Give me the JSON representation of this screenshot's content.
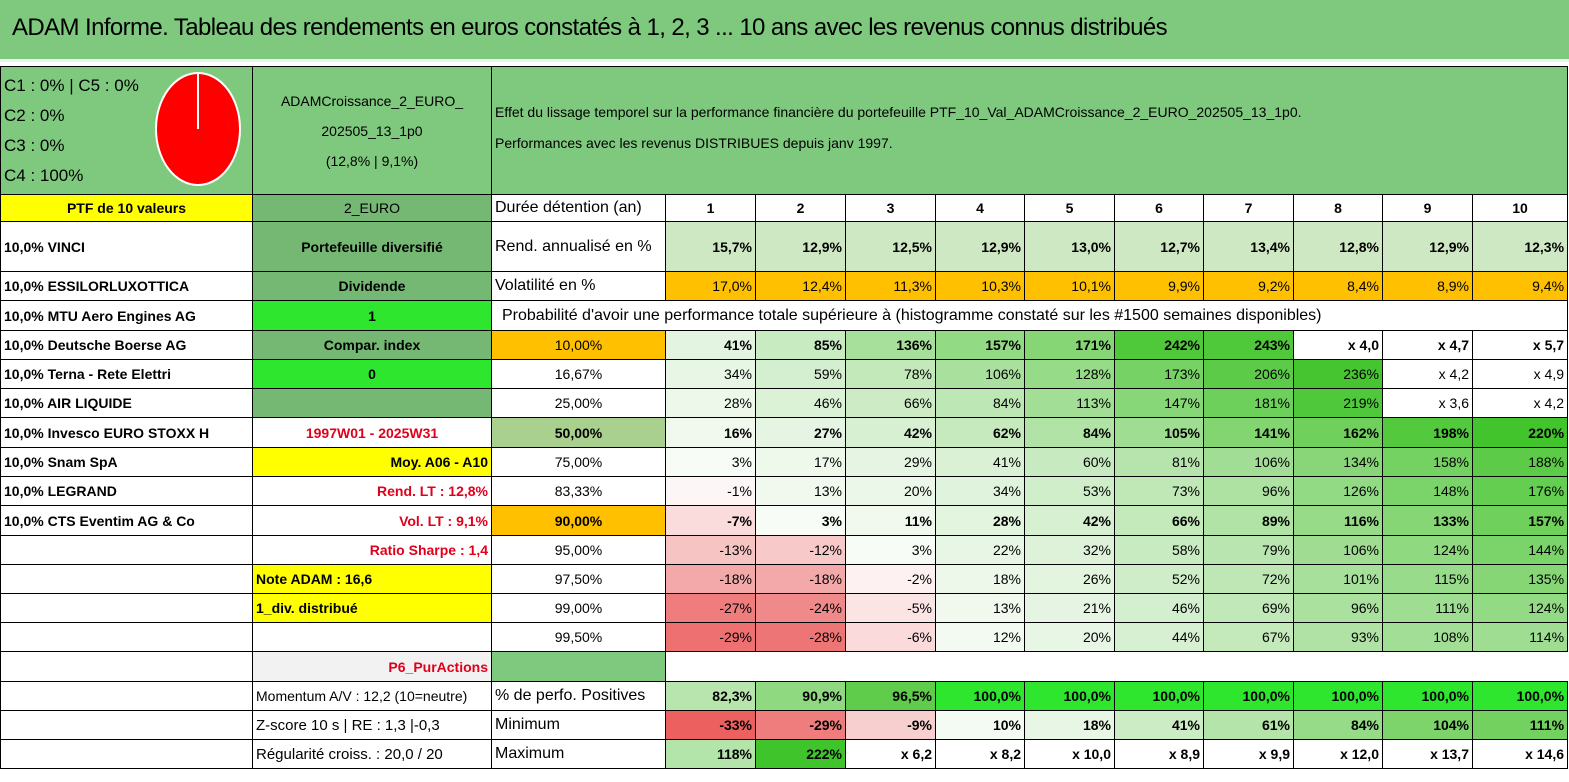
{
  "title": "ADAM Informe. Tableau des rendements en euros constatés à 1, 2, 3 ... 10 ans avec les revenus connus distribués",
  "categories": {
    "c1": "C1 : 0% | C5 : 0%",
    "c2": "C2 : 0%",
    "c3": "C3 : 0%",
    "c4": "C4 : 100%"
  },
  "portfolio": {
    "name_line1": "ADAMCroissance_2_EURO_",
    "name_line2": "202505_13_1p0",
    "name_line3": "(12,8% | 9,1%)"
  },
  "description": {
    "line1": "Effet du lissage temporel sur la performance financière du portefeuille PTF_10_Val_ADAMCroissance_2_EURO_202505_13_1p0.",
    "line2": "Performances avec les revenus DISTRIBUES depuis janv 1997."
  },
  "ptf_label": "PTF de 10 valeurs",
  "currency_label": "2_EURO",
  "duration_label": "Durée détention (an)",
  "years": [
    "1",
    "2",
    "3",
    "4",
    "5",
    "6",
    "7",
    "8",
    "9",
    "10"
  ],
  "holdings": [
    "10,0% VINCI",
    "10,0% ESSILORLUXOTTICA",
    "10,0% MTU Aero Engines AG",
    "10,0% Deutsche Boerse AG",
    "10,0% Terna - Rete Elettri",
    "10,0% AIR LIQUIDE",
    "10,0% Invesco EURO STOXX H",
    "10,0% Snam SpA",
    "10,0% LEGRAND",
    "10,0% CTS Eventim AG & Co"
  ],
  "middle": {
    "diversified": "Portefeuille diversifié",
    "dividend": "Dividende",
    "div_value": "1",
    "compar_index": "Compar. index",
    "compar_value": "0",
    "empty": "",
    "period": "1997W01 - 2025W31",
    "avg": "Moy. A06 - A10",
    "rend_lt": "Rend. LT : 12,8%",
    "vol_lt": "Vol. LT : 9,1%",
    "sharpe": "Ratio Sharpe : 1,4",
    "note": "Note ADAM : 16,6",
    "distrib": "1_div. distribué",
    "p6": "P6_PurActions",
    "momentum": "Momentum A/V : 12,2 (10=neutre)",
    "zscore": "Z-score 10 s | RE : 1,3 |-0,3",
    "regularity": "Régularité croiss. : 20,0 / 20"
  },
  "rend": {
    "label": "Rend. annualisé en %",
    "values": [
      "15,7%",
      "12,9%",
      "12,5%",
      "12,9%",
      "13,0%",
      "12,7%",
      "13,4%",
      "12,8%",
      "12,9%",
      "12,3%"
    ]
  },
  "vol": {
    "label": "Volatilité en %",
    "values": [
      "17,0%",
      "12,4%",
      "11,3%",
      "10,3%",
      "10,1%",
      "9,9%",
      "9,2%",
      "8,4%",
      "8,9%",
      "9,4%"
    ]
  },
  "prob_heading": "Probabilité d'avoir une performance totale supérieure à (histogramme constaté sur les #1500 semaines disponibles)",
  "prob_rows": [
    {
      "pct": "10,00%",
      "values": [
        "41%",
        "85%",
        "136%",
        "157%",
        "171%",
        "242%",
        "243%",
        "x 4,0",
        "x 4,7",
        "x 5,7"
      ]
    },
    {
      "pct": "16,67%",
      "values": [
        "34%",
        "59%",
        "78%",
        "106%",
        "128%",
        "173%",
        "206%",
        "236%",
        "x 4,2",
        "x 4,9"
      ]
    },
    {
      "pct": "25,00%",
      "values": [
        "28%",
        "46%",
        "66%",
        "84%",
        "113%",
        "147%",
        "181%",
        "219%",
        "x 3,6",
        "x 4,2"
      ]
    },
    {
      "pct": "50,00%",
      "values": [
        "16%",
        "27%",
        "42%",
        "62%",
        "84%",
        "105%",
        "141%",
        "162%",
        "198%",
        "220%"
      ]
    },
    {
      "pct": "75,00%",
      "values": [
        "3%",
        "17%",
        "29%",
        "41%",
        "60%",
        "81%",
        "106%",
        "134%",
        "158%",
        "188%"
      ]
    },
    {
      "pct": "83,33%",
      "values": [
        "-1%",
        "13%",
        "20%",
        "34%",
        "53%",
        "73%",
        "96%",
        "126%",
        "148%",
        "176%"
      ]
    },
    {
      "pct": "90,00%",
      "values": [
        "-7%",
        "3%",
        "11%",
        "28%",
        "42%",
        "66%",
        "89%",
        "116%",
        "133%",
        "157%"
      ]
    },
    {
      "pct": "95,00%",
      "values": [
        "-13%",
        "-12%",
        "3%",
        "22%",
        "32%",
        "58%",
        "79%",
        "106%",
        "124%",
        "144%"
      ]
    },
    {
      "pct": "97,50%",
      "values": [
        "-18%",
        "-18%",
        "-2%",
        "18%",
        "26%",
        "52%",
        "72%",
        "101%",
        "115%",
        "135%"
      ]
    },
    {
      "pct": "99,00%",
      "values": [
        "-27%",
        "-24%",
        "-5%",
        "13%",
        "21%",
        "46%",
        "69%",
        "96%",
        "111%",
        "124%"
      ]
    },
    {
      "pct": "99,50%",
      "values": [
        "-29%",
        "-28%",
        "-6%",
        "12%",
        "20%",
        "44%",
        "67%",
        "93%",
        "108%",
        "114%"
      ]
    }
  ],
  "positives": {
    "label": "% de perfo. Positives",
    "values": [
      "82,3%",
      "90,9%",
      "96,5%",
      "100,0%",
      "100,0%",
      "100,0%",
      "100,0%",
      "100,0%",
      "100,0%",
      "100,0%"
    ]
  },
  "minimum": {
    "label": "Minimum",
    "values": [
      "-33%",
      "-29%",
      "-9%",
      "10%",
      "18%",
      "41%",
      "61%",
      "84%",
      "104%",
      "111%"
    ]
  },
  "maximum": {
    "label": "Maximum",
    "values": [
      "118%",
      "222%",
      "x 6,2",
      "x 8,2",
      "x 10,0",
      "x 8,9",
      "x 9,9",
      "x 12,0",
      "x 13,7",
      "x 14,6"
    ]
  }
}
